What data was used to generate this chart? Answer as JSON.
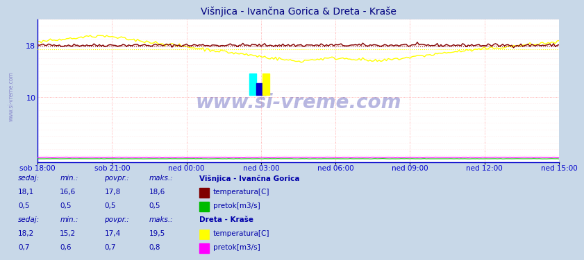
{
  "title": "Višnjica - Ivančna Gorica & Dreta - Kraše",
  "title_color": "#000080",
  "bg_color": "#c8d8e8",
  "plot_bg_color": "#ffffff",
  "watermark": "www.si-vreme.com",
  "watermark_color": "#4444aa",
  "x_ticks": [
    "sob 18:00",
    "sob 21:00",
    "ned 00:00",
    "ned 03:00",
    "ned 06:00",
    "ned 09:00",
    "ned 12:00",
    "ned 15:00"
  ],
  "ylim": [
    0,
    22
  ],
  "n_points": 288,
  "vishnjica_temp_min": 16.6,
  "vishnjica_temp_max": 18.6,
  "vishnjica_temp_avg": 17.8,
  "vishnjica_temp_now": 18.1,
  "vishnjica_pretok_min": 0.5,
  "vishnjica_pretok_max": 0.5,
  "vishnjica_pretok_avg": 0.5,
  "vishnjica_pretok_now": 0.5,
  "dreta_temp_min": 15.2,
  "dreta_temp_max": 19.5,
  "dreta_temp_avg": 17.4,
  "dreta_temp_now": 18.2,
  "dreta_pretok_min": 0.6,
  "dreta_pretok_max": 0.8,
  "dreta_pretok_avg": 0.7,
  "dreta_pretok_now": 0.7,
  "color_vishnjica_temp": "#800000",
  "color_vishnjica_pretok": "#00bb00",
  "color_dreta_temp": "#ffff00",
  "color_dreta_pretok": "#ff00ff",
  "grid_color_major": "#ff9999",
  "grid_color_minor": "#ffdddd",
  "axis_color": "#0000cc",
  "table_text_color": "#0000aa",
  "table_bg_color": "#ffffff",
  "left_watermark_color": "#8888cc"
}
